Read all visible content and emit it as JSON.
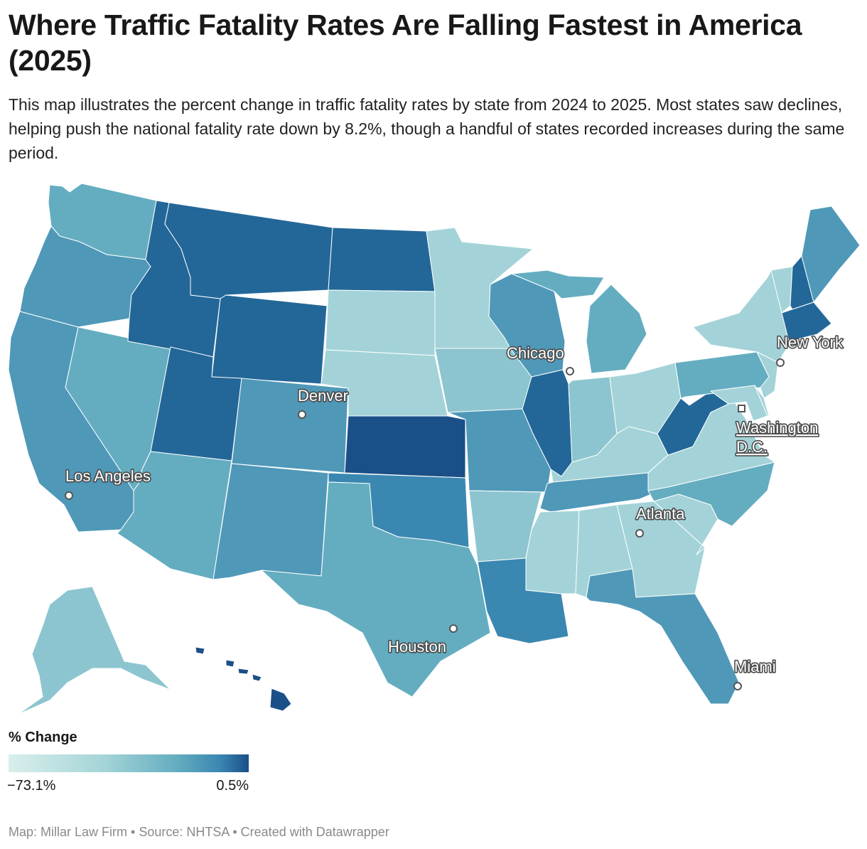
{
  "title": "Where Traffic Fatality Rates Are Falling Fastest in America (2025)",
  "subtitle": "This map illustrates the percent change in traffic fatality rates by state from 2024 to 2025. Most states saw declines, helping push the national fatality rate down by 8.2%, though a handful of states recorded increases during the same period.",
  "legend": {
    "title": "% Change",
    "min_label": "−73.1%",
    "max_label": "0.5%"
  },
  "footer": "Map: Millar Law Firm • Source: NHTSA • Created with Datawrapper",
  "colors": {
    "darkest": "#1b4f88",
    "dark": "#236798",
    "mid_dark": "#3a87b1",
    "mid": "#4f98b8",
    "mid_light": "#64adc0",
    "light": "#8cc5cf",
    "lighter": "#a3d3d8",
    "lightest": "#d9efec",
    "border": "#ffffff"
  },
  "map_data": {
    "metric": "% Change",
    "states": [
      {
        "code": "WA",
        "shade": "mid_light"
      },
      {
        "code": "OR",
        "shade": "mid"
      },
      {
        "code": "CA",
        "shade": "mid"
      },
      {
        "code": "NV",
        "shade": "mid_light"
      },
      {
        "code": "ID",
        "shade": "dark"
      },
      {
        "code": "MT",
        "shade": "dark"
      },
      {
        "code": "WY",
        "shade": "dark"
      },
      {
        "code": "UT",
        "shade": "dark"
      },
      {
        "code": "AZ",
        "shade": "mid_light"
      },
      {
        "code": "CO",
        "shade": "mid"
      },
      {
        "code": "NM",
        "shade": "mid"
      },
      {
        "code": "ND",
        "shade": "dark"
      },
      {
        "code": "SD",
        "shade": "lighter"
      },
      {
        "code": "NE",
        "shade": "lighter"
      },
      {
        "code": "KS",
        "shade": "darkest"
      },
      {
        "code": "OK",
        "shade": "mid_dark"
      },
      {
        "code": "TX",
        "shade": "mid_light"
      },
      {
        "code": "MN",
        "shade": "lighter"
      },
      {
        "code": "IA",
        "shade": "light"
      },
      {
        "code": "MO",
        "shade": "mid"
      },
      {
        "code": "AR",
        "shade": "light"
      },
      {
        "code": "LA",
        "shade": "mid_dark"
      },
      {
        "code": "WI",
        "shade": "mid"
      },
      {
        "code": "IL",
        "shade": "dark"
      },
      {
        "code": "MI",
        "shade": "mid_light"
      },
      {
        "code": "IN",
        "shade": "light"
      },
      {
        "code": "OH",
        "shade": "lighter"
      },
      {
        "code": "KY",
        "shade": "lighter"
      },
      {
        "code": "TN",
        "shade": "mid"
      },
      {
        "code": "MS",
        "shade": "lighter"
      },
      {
        "code": "AL",
        "shade": "lighter"
      },
      {
        "code": "GA",
        "shade": "lighter"
      },
      {
        "code": "FL",
        "shade": "mid"
      },
      {
        "code": "SC",
        "shade": "lighter"
      },
      {
        "code": "NC",
        "shade": "mid_light"
      },
      {
        "code": "VA",
        "shade": "lighter"
      },
      {
        "code": "WV",
        "shade": "dark"
      },
      {
        "code": "PA",
        "shade": "mid_light"
      },
      {
        "code": "NY",
        "shade": "lighter"
      },
      {
        "code": "NJ",
        "shade": "lighter"
      },
      {
        "code": "MD",
        "shade": "lighter"
      },
      {
        "code": "DE",
        "shade": "lighter"
      },
      {
        "code": "ME",
        "shade": "mid"
      },
      {
        "code": "NH",
        "shade": "dark"
      },
      {
        "code": "VT",
        "shade": "lighter"
      },
      {
        "code": "MA",
        "shade": "dark"
      },
      {
        "code": "AK",
        "shade": "light"
      },
      {
        "code": "HI",
        "shade": "darkest"
      }
    ],
    "cities": [
      {
        "name": "Chicago",
        "marker": "circle"
      },
      {
        "name": "New York",
        "marker": "circle"
      },
      {
        "name": "Denver",
        "marker": "circle"
      },
      {
        "name": "Washington D.C.",
        "line1": "Washington",
        "line2": "D.C.",
        "marker": "square"
      },
      {
        "name": "Los Angeles",
        "marker": "circle"
      },
      {
        "name": "Atlanta",
        "marker": "circle"
      },
      {
        "name": "Houston",
        "marker": "circle"
      },
      {
        "name": "Miami",
        "marker": "circle"
      }
    ]
  }
}
